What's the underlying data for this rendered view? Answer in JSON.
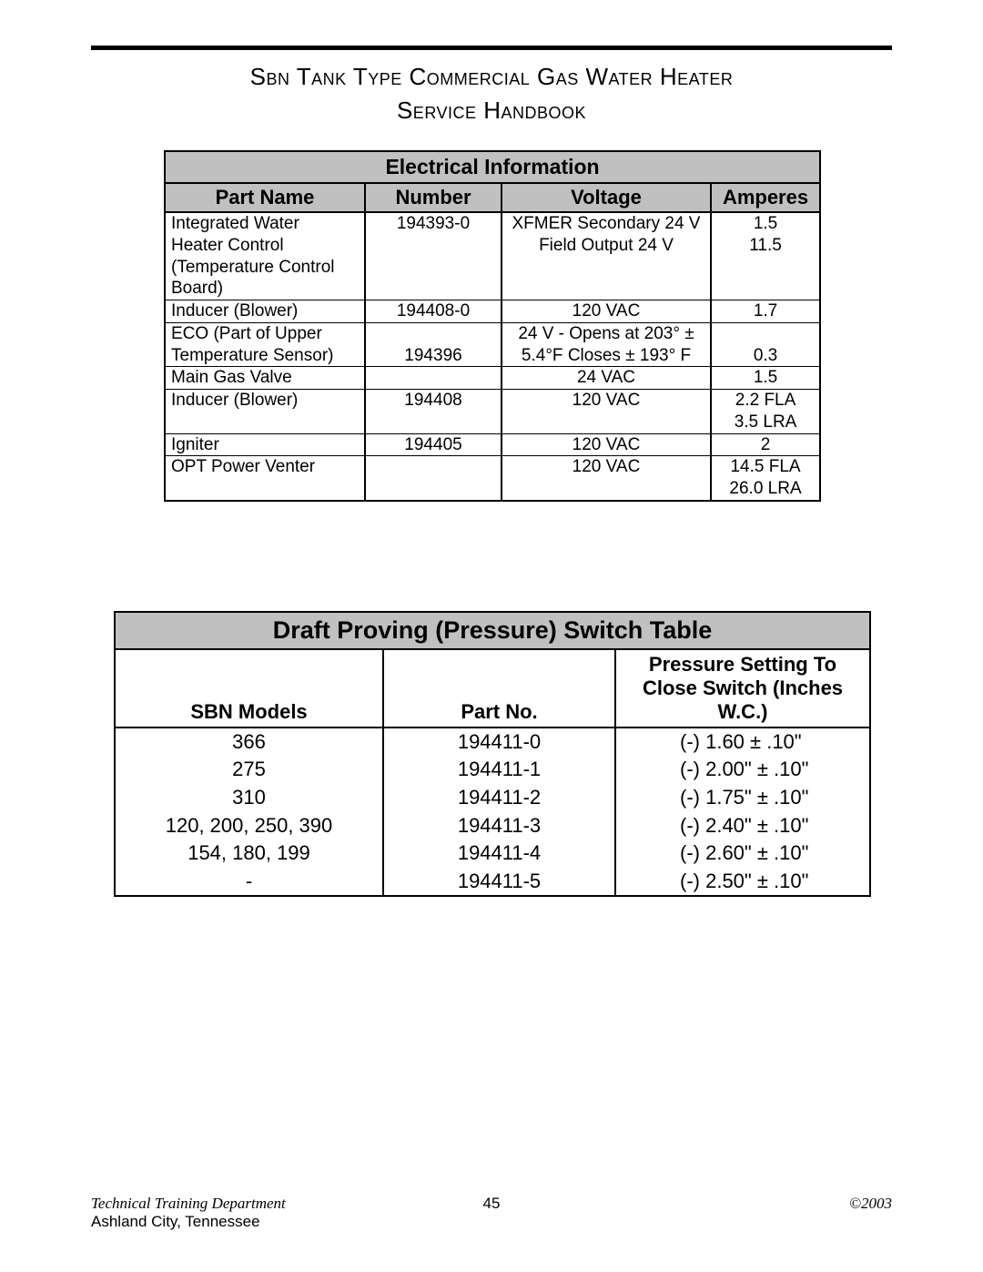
{
  "header": {
    "title": "Sbn Tank Type Commercial Gas Water Heater",
    "subtitle": "Service Handbook"
  },
  "table1": {
    "title": "Electrical Information",
    "columns": [
      "Part Name",
      "Number",
      "Voltage",
      "Amperes"
    ],
    "header_bg": "#c0c0c0",
    "border_color": "#000000",
    "font_size": 19,
    "rows": [
      {
        "c1": "Integrated Water",
        "c2": "194393-0",
        "c3": "XFMER Secondary 24 V",
        "c4": "1.5",
        "divider": false
      },
      {
        "c1": "Heater Control",
        "c2": "",
        "c3": "Field Output 24 V",
        "c4": "11.5",
        "divider": false
      },
      {
        "c1": "(Temperature Control",
        "c2": "",
        "c3": "",
        "c4": "",
        "divider": false
      },
      {
        "c1": "Board)",
        "c2": "",
        "c3": "",
        "c4": "",
        "divider": true
      },
      {
        "c1": "Inducer (Blower)",
        "c2": "194408-0",
        "c3": "120 VAC",
        "c4": "1.7",
        "divider": true
      },
      {
        "c1": "ECO (Part of Upper",
        "c2": "",
        "c3": "24 V - Opens at 203° ±",
        "c4": "",
        "divider": false
      },
      {
        "c1": "Temperature Sensor)",
        "c2": "194396",
        "c3": "5.4°F Closes ± 193° F",
        "c4": "0.3",
        "divider": true
      },
      {
        "c1": "Main Gas Valve",
        "c2": "",
        "c3": "24 VAC",
        "c4": "1.5",
        "divider": true
      },
      {
        "c1": "Inducer (Blower)",
        "c2": "194408",
        "c3": "120 VAC",
        "c4": "2.2 FLA",
        "divider": false
      },
      {
        "c1": "",
        "c2": "",
        "c3": "",
        "c4": "3.5 LRA",
        "divider": true
      },
      {
        "c1": "Igniter",
        "c2": "194405",
        "c3": "120 VAC",
        "c4": "2",
        "divider": true
      },
      {
        "c1": "OPT Power Venter",
        "c2": "",
        "c3": "120 VAC",
        "c4": "14.5 FLA",
        "divider": false
      },
      {
        "c1": "",
        "c2": "",
        "c3": "",
        "c4": "26.0 LRA",
        "divider": true
      }
    ]
  },
  "table2": {
    "title": "Draft Proving (Pressure) Switch Table",
    "columns": [
      "SBN Models",
      "Part No.",
      "Pressure Setting To Close Switch (Inches W.C.)"
    ],
    "col3_line1": "Pressure Setting To",
    "col3_line2": "Close Switch (Inches",
    "col3_line3": "W.C.)",
    "header_bg": "#c0c0c0",
    "border_color": "#000000",
    "font_size": 22,
    "rows": [
      {
        "c1": "366",
        "c2": "194411-0",
        "c3": "(-) 1.60 ± .10\""
      },
      {
        "c1": "275",
        "c2": "194411-1",
        "c3": "(-) 2.00\" ± .10\""
      },
      {
        "c1": "310",
        "c2": "194411-2",
        "c3": "(-) 1.75\" ± .10\""
      },
      {
        "c1": "120, 200, 250, 390",
        "c2": "194411-3",
        "c3": "(-) 2.40\" ± .10\""
      },
      {
        "c1": "154, 180, 199",
        "c2": "194411-4",
        "c3": "(-) 2.60\" ± .10\""
      },
      {
        "c1": "-",
        "c2": "194411-5",
        "c3": "(-) 2.50\" ± .10\""
      }
    ]
  },
  "footer": {
    "dept": "Technical Training Department",
    "location": "Ashland City, Tennessee",
    "page": "45",
    "copyright": "©2003"
  }
}
